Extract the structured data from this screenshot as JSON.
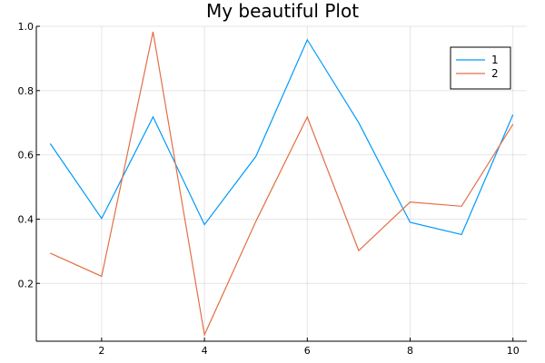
{
  "chart_data": {
    "type": "line",
    "title": "My beautiful Plot",
    "xlabel": "",
    "ylabel": "",
    "x": [
      1,
      2,
      3,
      4,
      5,
      6,
      7,
      8,
      9,
      10
    ],
    "xlim": [
      0.73,
      10.27
    ],
    "ylim": [
      0.02,
      1.0
    ],
    "x_ticks": [
      2,
      4,
      6,
      8,
      10
    ],
    "y_ticks": [
      0.2,
      0.4,
      0.6,
      0.8,
      1.0
    ],
    "x_tick_labels": [
      "2",
      "4",
      "6",
      "8",
      "10"
    ],
    "y_tick_labels": [
      "0.2",
      "0.4",
      "0.6",
      "0.8",
      "1.0"
    ],
    "grid": true,
    "legend_position": "top-right",
    "series": [
      {
        "name": "1",
        "color": "#009AFA",
        "values": [
          0.635,
          0.402,
          0.718,
          0.383,
          0.595,
          0.958,
          0.7,
          0.39,
          0.352,
          0.725
        ]
      },
      {
        "name": "2",
        "color": "#E36F47",
        "values": [
          0.294,
          0.222,
          0.983,
          0.04,
          0.393,
          0.718,
          0.302,
          0.453,
          0.44,
          0.695
        ]
      }
    ]
  }
}
